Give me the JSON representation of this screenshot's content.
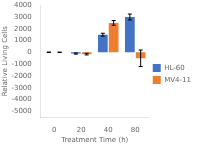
{
  "chart_data": {
    "type": "bar",
    "xlabel": "Treatment Time (h)",
    "ylabel": "Relative Living Cells",
    "categories": [
      "0",
      "20",
      "40",
      "80"
    ],
    "series": [
      {
        "name": "HL-60",
        "color": "#4472C4",
        "values": [
          10,
          -100,
          1500,
          3000
        ],
        "errors": [
          20,
          50,
          120,
          250
        ]
      },
      {
        "name": "MV4-11",
        "color": "#ED7D31",
        "values": [
          5,
          -150,
          2500,
          -500
        ],
        "errors": [
          20,
          70,
          200,
          700
        ]
      }
    ],
    "ylim": [
      -5500,
      4000
    ],
    "yticks": [
      4000,
      3000,
      2000,
      1000,
      0,
      -1000,
      -2000,
      -3000,
      -4000,
      -5000
    ],
    "grid": false,
    "legend": "right"
  }
}
